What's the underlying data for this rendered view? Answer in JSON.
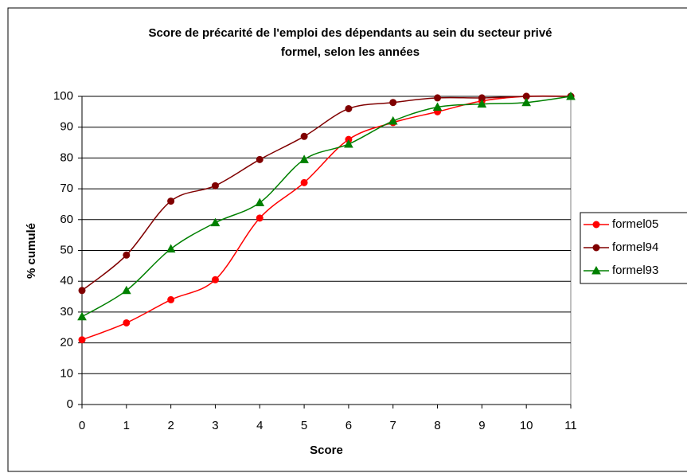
{
  "chart_data": {
    "type": "line",
    "title": [
      "Score de précarité de l'emploi des dépendants au sein du secteur privé",
      "formel, selon les années"
    ],
    "x_label": "Score",
    "y_label": "% cumulé",
    "x": [
      0,
      1,
      2,
      3,
      4,
      5,
      6,
      7,
      8,
      9,
      10,
      11
    ],
    "xlim": [
      0,
      11
    ],
    "xticks": [
      0,
      1,
      2,
      3,
      4,
      5,
      6,
      7,
      8,
      9,
      10,
      11
    ],
    "ylim": [
      0,
      100
    ],
    "yticks": [
      0,
      10,
      20,
      30,
      40,
      50,
      60,
      70,
      80,
      90,
      100
    ],
    "grid": true,
    "smooth": true,
    "legend": "right",
    "series": [
      {
        "name": "formel05",
        "color": "#ff0000",
        "marker": "circle",
        "values": [
          21,
          26.5,
          34,
          40.5,
          60.5,
          72,
          86,
          91.5,
          95,
          98.5,
          100,
          100
        ]
      },
      {
        "name": "formel94",
        "color": "#800000",
        "marker": "circle",
        "values": [
          37,
          48.5,
          66,
          71,
          79.5,
          87,
          96,
          98,
          99.5,
          99.5,
          100,
          100
        ]
      },
      {
        "name": "formel93",
        "color": "#008000",
        "marker": "triangle",
        "values": [
          28.5,
          37,
          50.5,
          59,
          65.5,
          79.5,
          84.5,
          92,
          96.5,
          97.5,
          98,
          100
        ]
      }
    ]
  }
}
